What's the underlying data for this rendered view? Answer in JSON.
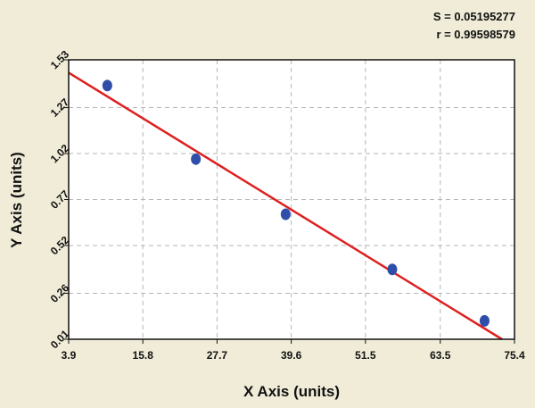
{
  "chart_data": {
    "type": "scatter",
    "title": "",
    "stats": {
      "s_text": "S = 0.05195277",
      "r_text": "r = 0.99598579"
    },
    "xlabel": "X Axis (units)",
    "ylabel": "Y Axis (units)",
    "xlim": [
      3.9,
      75.4
    ],
    "ylim": [
      0.01,
      1.53
    ],
    "x_ticks": [
      "3.9",
      "15.8",
      "27.7",
      "39.6",
      "51.5",
      "63.5",
      "75.4"
    ],
    "y_ticks": [
      "0.01",
      "0.26",
      "0.52",
      "0.77",
      "1.02",
      "1.27",
      "1.53"
    ],
    "grid": true,
    "legend": "none",
    "series": [
      {
        "points": [
          {
            "x": 10.1,
            "y": 1.39
          },
          {
            "x": 24.3,
            "y": 0.99
          },
          {
            "x": 38.7,
            "y": 0.69
          },
          {
            "x": 55.8,
            "y": 0.39
          },
          {
            "x": 70.6,
            "y": 0.11
          }
        ]
      }
    ],
    "fit_line": {
      "x1": 3.9,
      "y1": 1.46,
      "x2": 73.4,
      "y2": 0.01
    },
    "colors": {
      "background": "#f0ecd8",
      "plot_area": "#ffffff",
      "grid": "#b5b5b5",
      "points": "#2e4eaa",
      "fit_line": "#dd2020"
    }
  }
}
